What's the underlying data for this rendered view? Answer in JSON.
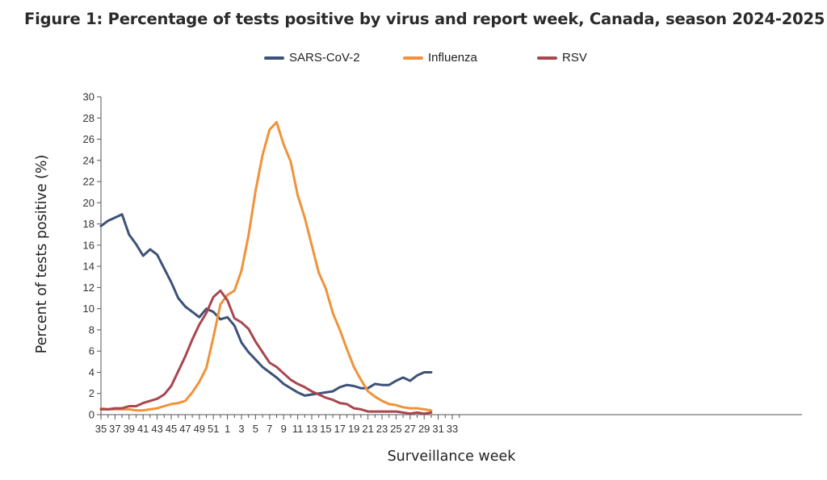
{
  "title": "Figure 1: Percentage of tests positive by virus and report week, Canada, season 2024-2025",
  "colors": {
    "SARS-CoV-2": "#3d5279",
    "Influenza": "#f0923a",
    "RSV": "#a9464e"
  },
  "chart_data": {
    "type": "line",
    "title": "Figure 1: Percentage of tests positive by virus and report week, Canada, season 2024-2025",
    "xlabel": "Surveillance week",
    "ylabel": "Percent of tests positive (%)",
    "ylim": [
      0,
      30
    ],
    "yticks": [
      0,
      2,
      4,
      6,
      8,
      10,
      12,
      14,
      16,
      18,
      20,
      22,
      24,
      26,
      28,
      30
    ],
    "xtick_labels": [
      "35",
      "37",
      "39",
      "41",
      "43",
      "45",
      "47",
      "49",
      "51",
      "1",
      "3",
      "5",
      "7",
      "9",
      "11",
      "13",
      "15",
      "17",
      "19",
      "21",
      "23",
      "25",
      "27",
      "29",
      "31",
      "33"
    ],
    "grid": false,
    "legend_position": "top",
    "weeks": [
      "35",
      "36",
      "37",
      "38",
      "39",
      "40",
      "41",
      "42",
      "43",
      "44",
      "45",
      "46",
      "47",
      "48",
      "49",
      "50",
      "51",
      "52",
      "1",
      "2",
      "3",
      "4",
      "5",
      "6",
      "7",
      "8",
      "9",
      "10",
      "11",
      "12",
      "13",
      "14",
      "15",
      "16",
      "17",
      "18",
      "19",
      "20",
      "21",
      "22",
      "23",
      "24",
      "25",
      "26",
      "27",
      "28",
      "29",
      "30",
      "31",
      "32",
      "33",
      "34"
    ],
    "series": [
      {
        "name": "SARS-CoV-2",
        "values": [
          17.8,
          18.3,
          18.6,
          18.9,
          17.0,
          16.1,
          15.0,
          15.6,
          15.1,
          13.8,
          12.5,
          11.0,
          10.2,
          9.7,
          9.2,
          10.0,
          9.7,
          9.0,
          9.2,
          8.4,
          6.8,
          5.9,
          5.2,
          4.5,
          4.0,
          3.5,
          2.9,
          2.5,
          2.1,
          1.8,
          1.9,
          2.0,
          2.1,
          2.2,
          2.6,
          2.8,
          2.7,
          2.5,
          2.5,
          2.9,
          2.8,
          2.8,
          3.2,
          3.5,
          3.2,
          3.7,
          4.0,
          4.0
        ]
      },
      {
        "name": "Influenza",
        "values": [
          0.6,
          0.5,
          0.5,
          0.5,
          0.5,
          0.4,
          0.4,
          0.5,
          0.6,
          0.8,
          1.0,
          1.1,
          1.3,
          2.1,
          3.1,
          4.4,
          7.3,
          10.4,
          11.3,
          11.7,
          13.6,
          16.9,
          21.1,
          24.5,
          26.9,
          27.6,
          25.5,
          23.9,
          20.7,
          18.6,
          16.0,
          13.4,
          11.9,
          9.6,
          8.0,
          6.2,
          4.5,
          3.3,
          2.2,
          1.7,
          1.3,
          1.0,
          0.9,
          0.7,
          0.6,
          0.6,
          0.5,
          0.4
        ]
      },
      {
        "name": "RSV",
        "values": [
          0.5,
          0.5,
          0.6,
          0.6,
          0.8,
          0.8,
          1.1,
          1.3,
          1.5,
          1.9,
          2.7,
          4.1,
          5.5,
          7.1,
          8.5,
          9.6,
          11.1,
          11.7,
          10.8,
          9.1,
          8.7,
          8.1,
          6.9,
          5.9,
          4.9,
          4.5,
          3.9,
          3.3,
          2.9,
          2.6,
          2.2,
          1.9,
          1.6,
          1.4,
          1.1,
          1.0,
          0.6,
          0.5,
          0.3,
          0.3,
          0.3,
          0.3,
          0.3,
          0.2,
          0.1,
          0.2,
          0.1,
          0.2
        ]
      }
    ]
  }
}
